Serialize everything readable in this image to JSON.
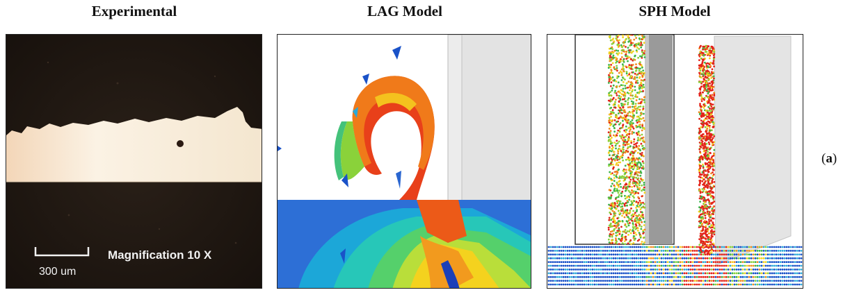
{
  "titles": {
    "experimental": "Experimental",
    "lag": "LAG Model",
    "sph": "SPH Model"
  },
  "experimental_panel": {
    "scale_bar_label": "300 um",
    "magnification_label": "Magnification 10 X"
  },
  "subfigure_label": {
    "open": "(",
    "letter": "a",
    "close": ")"
  },
  "colors": {
    "micrograph_dark": "#1c1410",
    "micrograph_bright": "#f6ead8",
    "contour_blue": "#1f5fd0",
    "contour_red": "#e8201a",
    "tool_gray": "#e4e4e4"
  }
}
